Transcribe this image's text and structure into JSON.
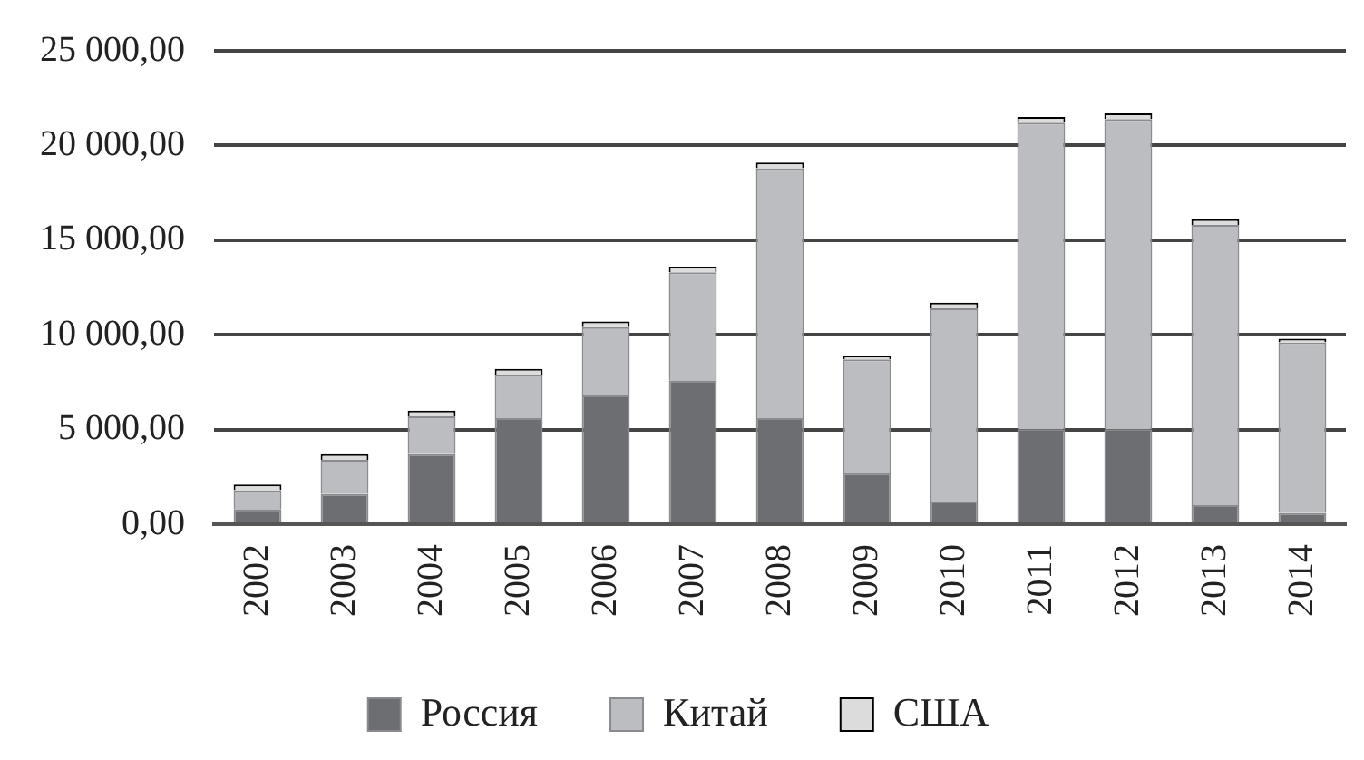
{
  "chart_data": {
    "type": "bar",
    "stacked": true,
    "categories": [
      "2002",
      "2003",
      "2004",
      "2005",
      "2006",
      "2007",
      "2008",
      "2009",
      "2010",
      "2011",
      "2012",
      "2013",
      "2014"
    ],
    "series": [
      {
        "name": "Россия",
        "color": "#6d6e71",
        "values": [
          800,
          1600,
          3700,
          5600,
          6800,
          7600,
          5600,
          2700,
          1200,
          5000,
          5000,
          1000,
          600
        ]
      },
      {
        "name": "Китай",
        "color": "#bcbdc0",
        "values": [
          1000,
          1800,
          2000,
          2300,
          3600,
          5700,
          13200,
          6000,
          10200,
          16200,
          16400,
          14800,
          9000
        ]
      },
      {
        "name": "США",
        "color": "#dcdcdc",
        "values": [
          300,
          300,
          300,
          300,
          300,
          300,
          300,
          200,
          300,
          300,
          300,
          300,
          200
        ]
      }
    ],
    "ylim": [
      0,
      25000
    ],
    "yticks": [
      {
        "value": 0,
        "label": "0,00"
      },
      {
        "value": 5000,
        "label": "5 000,00"
      },
      {
        "value": 10000,
        "label": "10 000,00"
      },
      {
        "value": 15000,
        "label": "15 000,00"
      },
      {
        "value": 20000,
        "label": "20 000,00"
      },
      {
        "value": 25000,
        "label": "25 000,00"
      }
    ],
    "grid": "y",
    "legend": "bottom"
  }
}
